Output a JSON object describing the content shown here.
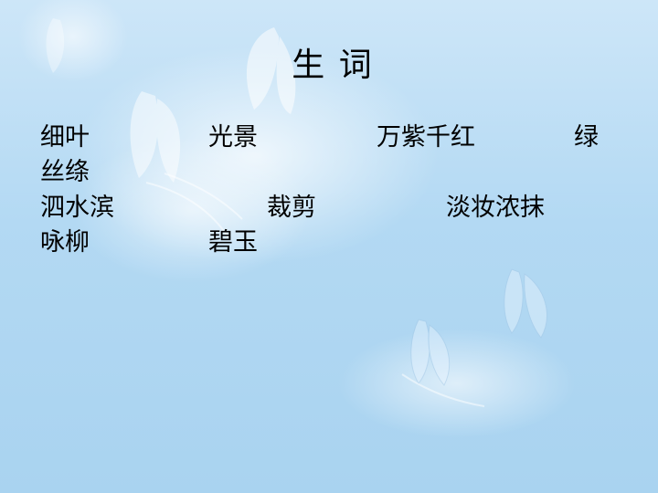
{
  "slide": {
    "title": "生 词",
    "words": [
      "细叶",
      "光景",
      "万紫千红",
      "绿",
      "丝绦",
      "泗水滨",
      "裁剪",
      "淡妆浓抹",
      "咏柳",
      "碧玉"
    ]
  }
}
